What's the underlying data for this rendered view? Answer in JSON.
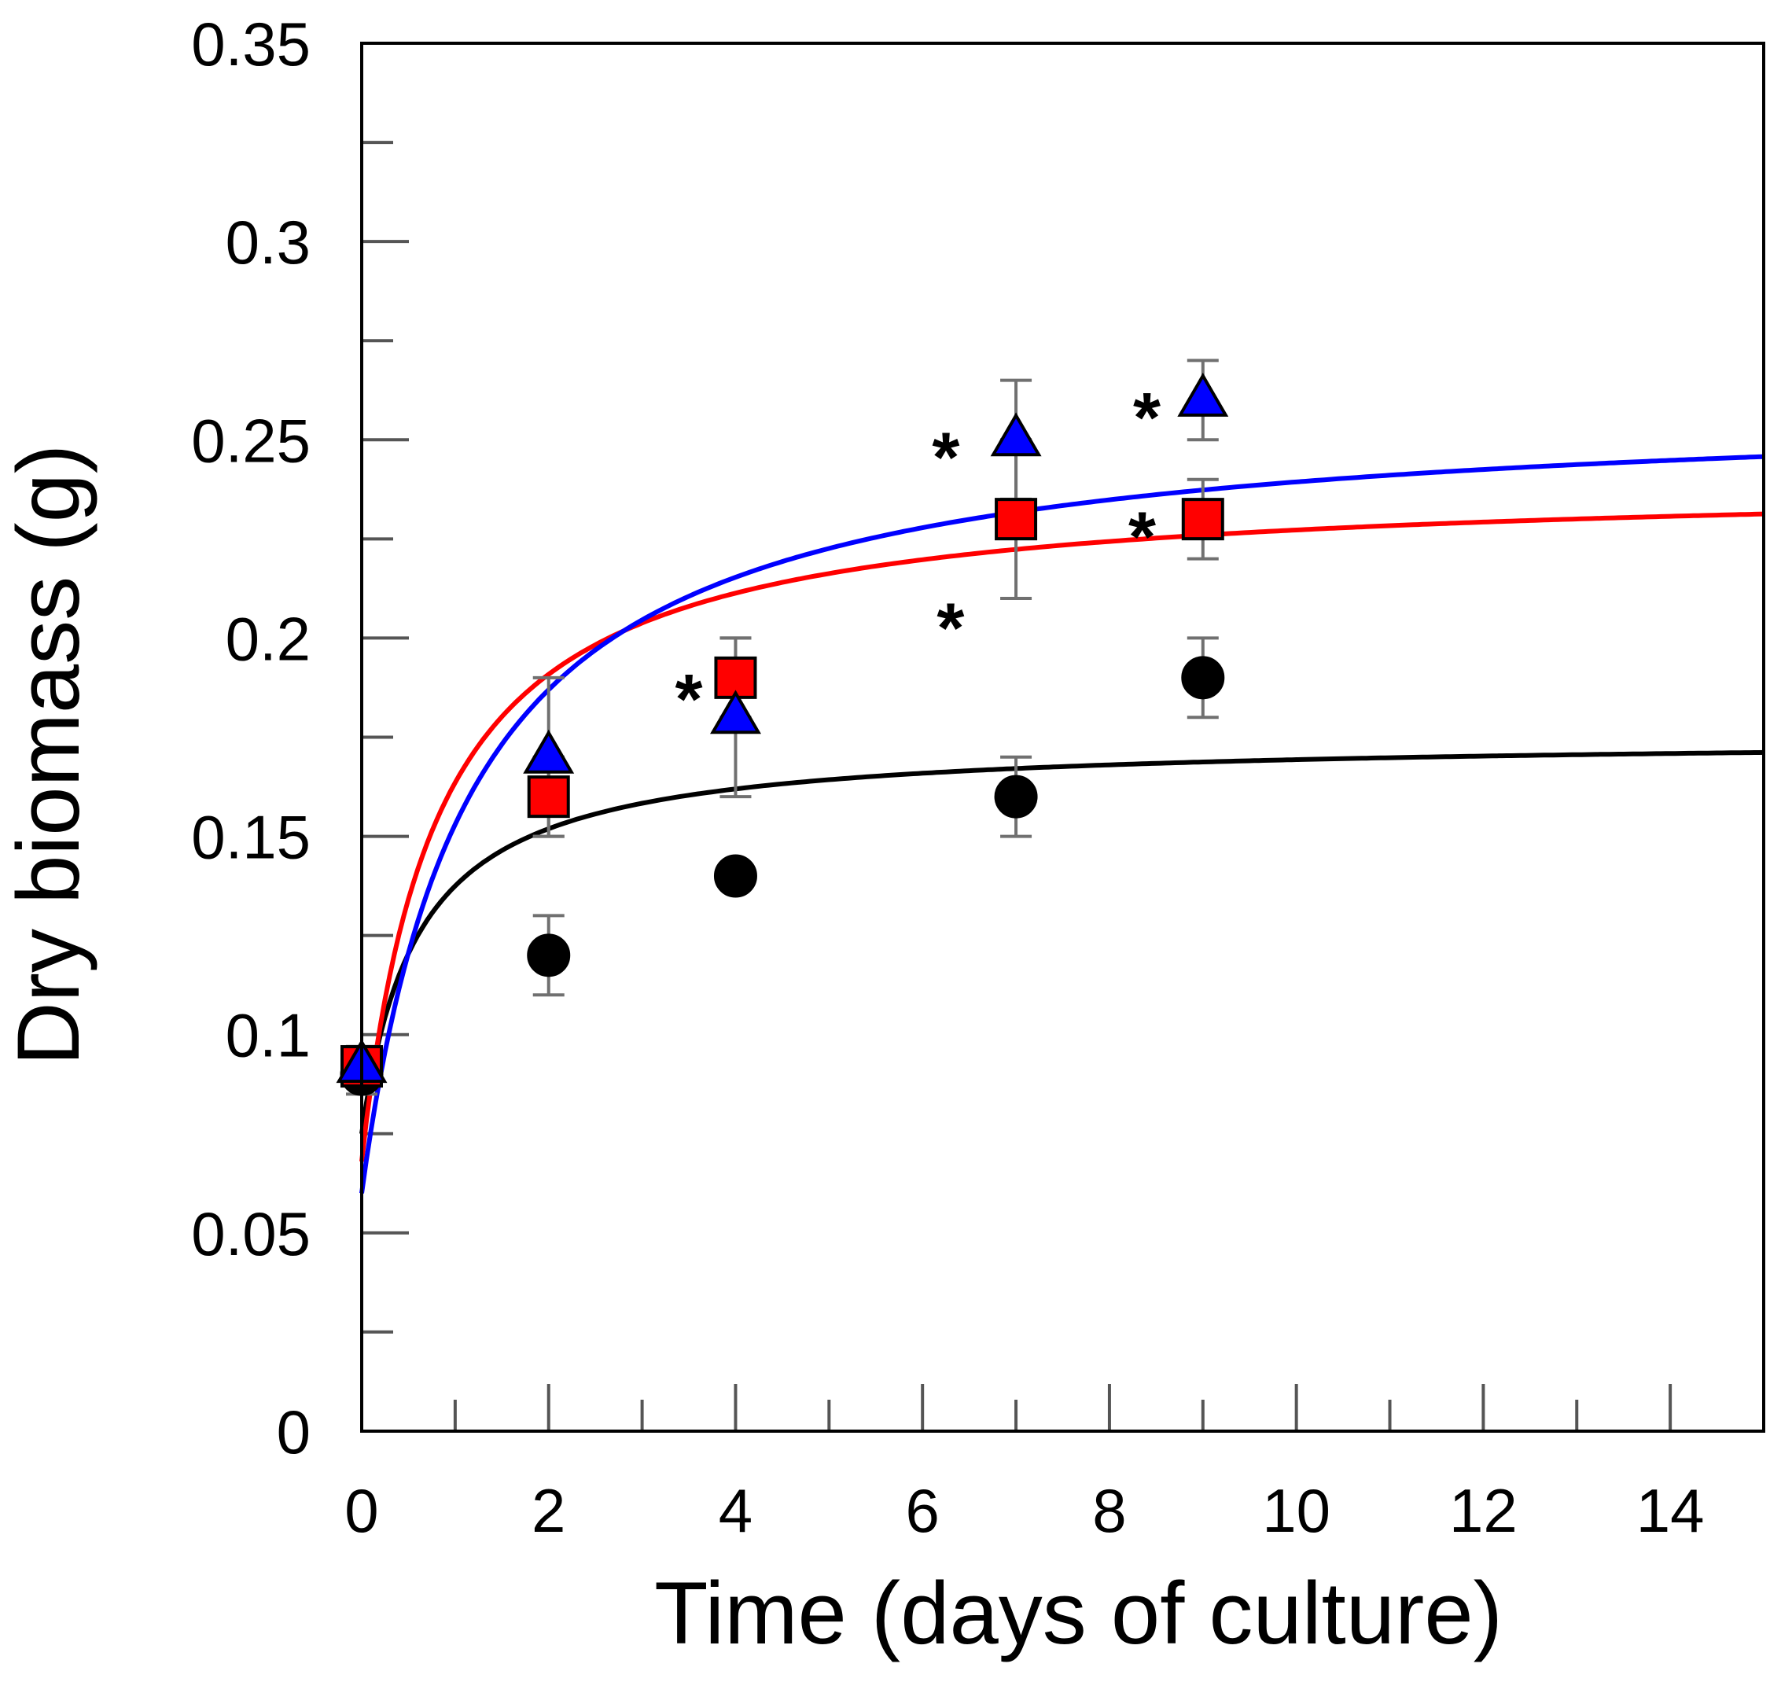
{
  "chart_data": {
    "type": "scatter",
    "title": "",
    "xlabel": "Time (days of culture)",
    "ylabel": "Dry biomass (g)",
    "xlim": [
      0,
      15
    ],
    "ylim": [
      0,
      0.35
    ],
    "x_ticks": [
      0,
      2,
      4,
      6,
      8,
      10,
      12,
      14
    ],
    "x_tick_labels": [
      "0",
      "2",
      "4",
      "6",
      "8",
      "10",
      "12",
      "14"
    ],
    "x_minor_step": 1,
    "y_ticks": [
      0,
      0.05,
      0.1,
      0.15,
      0.2,
      0.25,
      0.3,
      0.35
    ],
    "y_tick_labels": [
      "0",
      "0.05",
      "0.1",
      "0.15",
      "0.2",
      "0.25",
      "0.3",
      "0.35"
    ],
    "y_minor_step": 0.025,
    "grid": false,
    "legend": false,
    "error_bar_color": "#707070",
    "series": [
      {
        "name": "black-circles",
        "marker": "circle",
        "color": "#000000",
        "curve_color": "#000000",
        "x": [
          0,
          2,
          4,
          7,
          9
        ],
        "y": [
          0.09,
          0.12,
          0.14,
          0.16,
          0.19
        ],
        "err": [
          0.005,
          0.01,
          0.0,
          0.01,
          0.01
        ],
        "fit": {
          "y0": 0.075,
          "a": 0.1,
          "k": 0.6
        }
      },
      {
        "name": "red-squares",
        "marker": "square",
        "color": "#ff0000",
        "curve_color": "#ff0000",
        "x": [
          0,
          2,
          4,
          7,
          9
        ],
        "y": [
          0.092,
          0.16,
          0.19,
          0.23,
          0.23
        ],
        "err": [
          0.005,
          0.01,
          0.01,
          0.02,
          0.01
        ],
        "fit": {
          "y0": 0.068,
          "a": 0.172,
          "k": 0.8
        }
      },
      {
        "name": "blue-triangles",
        "marker": "triangle",
        "color": "#0000ff",
        "curve_color": "#0000ff",
        "x": [
          0,
          2,
          4,
          7,
          9
        ],
        "y": [
          0.092,
          0.17,
          0.18,
          0.25,
          0.26
        ],
        "err": [
          0.005,
          0.02,
          0.02,
          0.015,
          0.01
        ],
        "fit": {
          "y0": 0.06,
          "a": 0.2,
          "k": 1.15
        }
      }
    ],
    "annotations": [
      {
        "text": "*",
        "x": 3.5,
        "y": 0.186
      },
      {
        "text": "*",
        "x": 6.25,
        "y": 0.247
      },
      {
        "text": "*",
        "x": 6.3,
        "y": 0.204
      },
      {
        "text": "*",
        "x": 8.4,
        "y": 0.257
      },
      {
        "text": "*",
        "x": 8.35,
        "y": 0.227
      }
    ]
  }
}
